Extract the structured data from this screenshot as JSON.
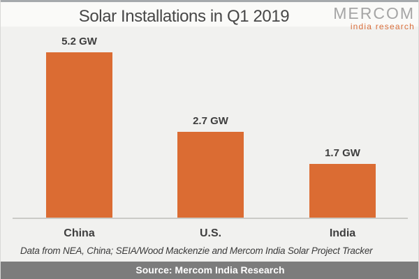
{
  "header": {
    "title": "Solar Installations in Q1 2019",
    "logo": {
      "name": "MERCOM",
      "subtitle": "india research",
      "name_color": "#a5a5a5",
      "subtitle_color": "#d96f3c"
    }
  },
  "chart_data": {
    "type": "bar",
    "title": "Solar Installations in Q1 2019",
    "categories": [
      "China",
      "U.S.",
      "India"
    ],
    "values": [
      5.2,
      2.7,
      1.7
    ],
    "value_labels": [
      "5.2 GW",
      "2.7 GW",
      "1.7 GW"
    ],
    "unit": "GW",
    "xlabel": "",
    "ylabel": "",
    "ylim": [
      0,
      5.2
    ],
    "grid": "off",
    "legend": "none",
    "bar_color": "#db6c33"
  },
  "footnote": "Data from NEA, China; SEIA/Wood Mackenzie and Mercom India Solar Project Tracker",
  "footer": {
    "source_label": "Source: Mercom India Research",
    "bg_color": "#7c7c7c"
  }
}
